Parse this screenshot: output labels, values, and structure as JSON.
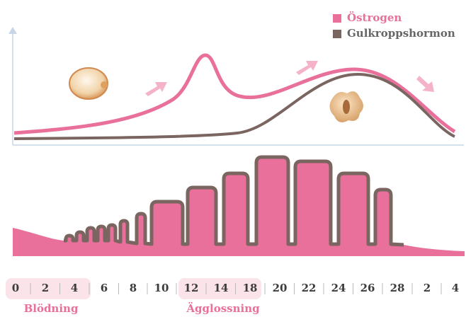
{
  "legend": {
    "items": [
      "Östrogen",
      "Gulkroppshormon"
    ]
  },
  "days": [
    "0",
    "2",
    "4",
    "6",
    "8",
    "10",
    "12",
    "14",
    "18",
    "20",
    "22",
    "24",
    "26",
    "28",
    "2",
    "4"
  ],
  "phases": {
    "bleeding": "Blödning",
    "ovulation": "Ägglossning"
  }
}
